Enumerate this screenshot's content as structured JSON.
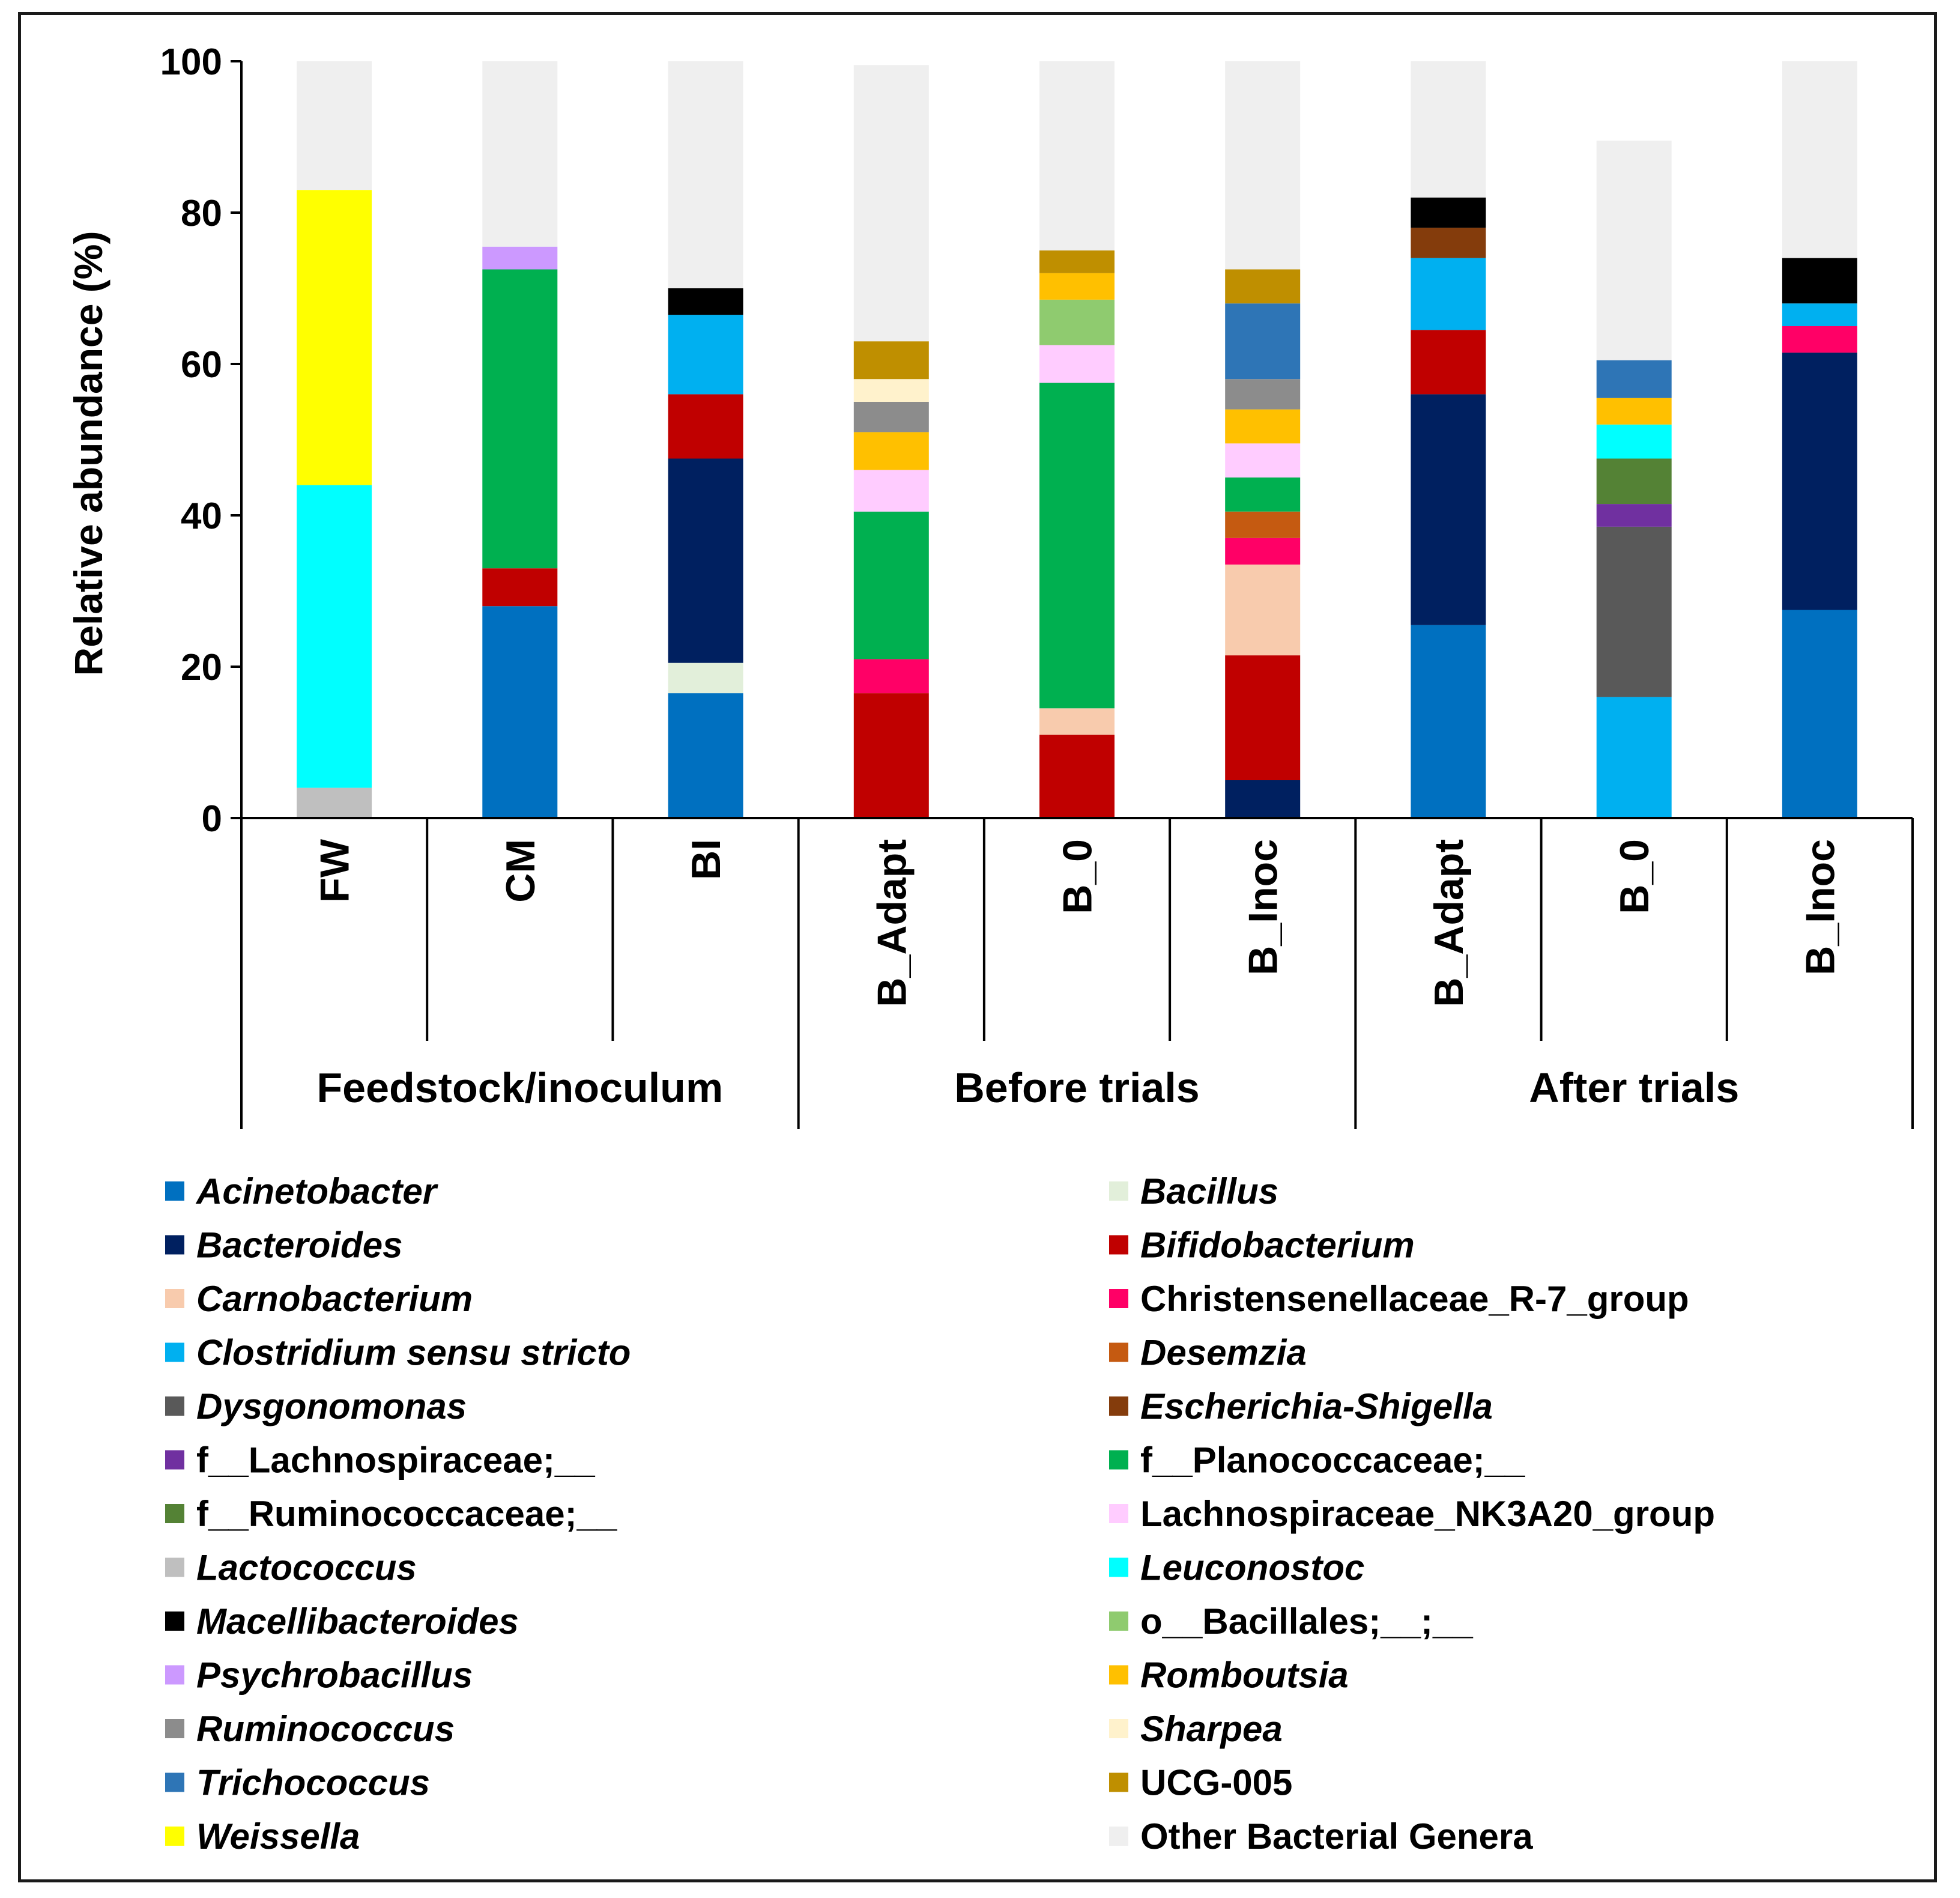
{
  "chart_data": {
    "type": "bar",
    "stacked": true,
    "title": "",
    "xlabel": "",
    "ylabel": "Relative abundance (%)",
    "ylim": [
      0,
      100
    ],
    "yticks": [
      "0",
      "20",
      "40",
      "60",
      "80",
      "100"
    ],
    "categories": [
      "FW",
      "CM",
      "BI",
      "B_Adapt",
      "B_0",
      "B_Inoc",
      "B_Adapt",
      "B_0",
      "B_Inoc"
    ],
    "groups": [
      {
        "label": "Feedstock/inoculum",
        "count": 3
      },
      {
        "label": "Before trials",
        "count": 3
      },
      {
        "label": "After trials",
        "count": 3
      }
    ],
    "series": [
      {
        "name": "Acinetobacter",
        "italic": true,
        "color": "#0070C0",
        "values": [
          0,
          28,
          16.5,
          0,
          0,
          0,
          25.5,
          0,
          27.5
        ]
      },
      {
        "name": "Bacillus",
        "italic": true,
        "color": "#E2EFDA",
        "values": [
          0,
          0,
          4,
          0,
          0,
          0,
          0,
          0,
          0
        ]
      },
      {
        "name": "Bacteroides",
        "italic": true,
        "color": "#002060",
        "values": [
          0,
          0,
          27,
          0,
          0,
          5,
          30.5,
          0,
          34
        ]
      },
      {
        "name": "Bifidobacterium",
        "italic": true,
        "color": "#C00000",
        "values": [
          0,
          5,
          8.5,
          16.5,
          11,
          16.5,
          8.5,
          0,
          0
        ]
      },
      {
        "name": "Carnobacterium",
        "italic": true,
        "color": "#F8CBAD",
        "values": [
          0,
          0,
          0,
          0,
          3.5,
          12,
          0,
          0,
          0
        ]
      },
      {
        "name": "Christensenellaceae_R-7_group",
        "italic": false,
        "color": "#FF0066",
        "values": [
          0,
          0,
          0,
          4.5,
          0,
          3.5,
          0,
          0,
          3.5
        ]
      },
      {
        "name": "Clostridium sensu stricto",
        "italic": true,
        "color": "#00B0F0",
        "values": [
          0,
          0,
          10.5,
          0,
          0,
          0,
          9.5,
          16,
          3
        ]
      },
      {
        "name": "Desemzia",
        "italic": true,
        "color": "#C55A11",
        "values": [
          0,
          0,
          0,
          0,
          0,
          3.5,
          0,
          0,
          0
        ]
      },
      {
        "name": "Dysgonomonas",
        "italic": true,
        "color": "#595959",
        "values": [
          0,
          0,
          0,
          0,
          0,
          0,
          0,
          22.5,
          0
        ]
      },
      {
        "name": "Escherichia-Shigella",
        "italic": true,
        "color": "#843C0C",
        "values": [
          0,
          0,
          0,
          0,
          0,
          0,
          4,
          0,
          0
        ]
      },
      {
        "name": "f__Lachnospiraceae;__",
        "italic": false,
        "color": "#7030A0",
        "values": [
          0,
          0,
          0,
          0,
          0,
          0,
          0,
          3,
          0
        ]
      },
      {
        "name": "f__Planococcaceae;__",
        "italic": false,
        "color": "#00B050",
        "values": [
          0,
          39.5,
          0,
          19.5,
          43,
          4.5,
          0,
          0,
          0
        ]
      },
      {
        "name": "f__Ruminococcaceae;__",
        "italic": false,
        "color": "#548235",
        "values": [
          0,
          0,
          0,
          0,
          0,
          0,
          0,
          6,
          0
        ]
      },
      {
        "name": "Lachnospiraceae_NK3A20_group",
        "italic": false,
        "color": "#FFCCFF",
        "values": [
          0,
          0,
          0,
          5.5,
          5,
          4.5,
          0,
          0,
          0
        ]
      },
      {
        "name": "Lactococcus",
        "italic": true,
        "color": "#BFBFBF",
        "values": [
          4,
          0,
          0,
          0,
          0,
          0,
          0,
          0,
          0
        ]
      },
      {
        "name": "Leuconostoc",
        "italic": true,
        "color": "#00FFFF",
        "values": [
          40,
          0,
          0,
          0,
          0,
          0,
          0,
          4.5,
          0
        ]
      },
      {
        "name": "Macellibacteroides",
        "italic": true,
        "color": "#000000",
        "values": [
          0,
          0,
          3.5,
          0,
          0,
          0,
          4,
          0,
          6
        ]
      },
      {
        "name": "o__Bacillales;__;__",
        "italic": false,
        "color": "#8FCB6F",
        "values": [
          0,
          0,
          0,
          0,
          6,
          0,
          0,
          0,
          0
        ]
      },
      {
        "name": "Psychrobacillus",
        "italic": true,
        "color": "#CC99FF",
        "values": [
          0,
          3,
          0,
          0,
          0,
          0,
          0,
          0,
          0
        ]
      },
      {
        "name": "Romboutsia",
        "italic": true,
        "color": "#FFC000",
        "values": [
          0,
          0,
          0,
          5,
          3.5,
          4.5,
          0,
          3.5,
          0
        ]
      },
      {
        "name": "Ruminococcus",
        "italic": true,
        "color": "#8C8C8C",
        "values": [
          0,
          0,
          0,
          4,
          0,
          4,
          0,
          0,
          0
        ]
      },
      {
        "name": "Sharpea",
        "italic": true,
        "color": "#FFF2CC",
        "values": [
          0,
          0,
          0,
          3,
          0,
          0,
          0,
          0,
          0
        ]
      },
      {
        "name": "Trichococcus",
        "italic": true,
        "color": "#2E75B6",
        "values": [
          0,
          0,
          0,
          0,
          0,
          10,
          0,
          5,
          0
        ]
      },
      {
        "name": "UCG-005",
        "italic": false,
        "color": "#BF8F00",
        "values": [
          0,
          0,
          0,
          5,
          3,
          4.5,
          0,
          0,
          0
        ]
      },
      {
        "name": "Weissella",
        "italic": true,
        "color": "#FFFF00",
        "values": [
          39,
          0,
          0,
          0,
          0,
          0,
          0,
          0,
          0
        ]
      },
      {
        "name": "Other Bacterial Genera",
        "italic": false,
        "color": "#EFEFEF",
        "values": [
          17,
          24.5,
          30,
          36.5,
          25,
          27.5,
          18,
          29,
          26
        ]
      }
    ],
    "legend_position": "bottom"
  }
}
